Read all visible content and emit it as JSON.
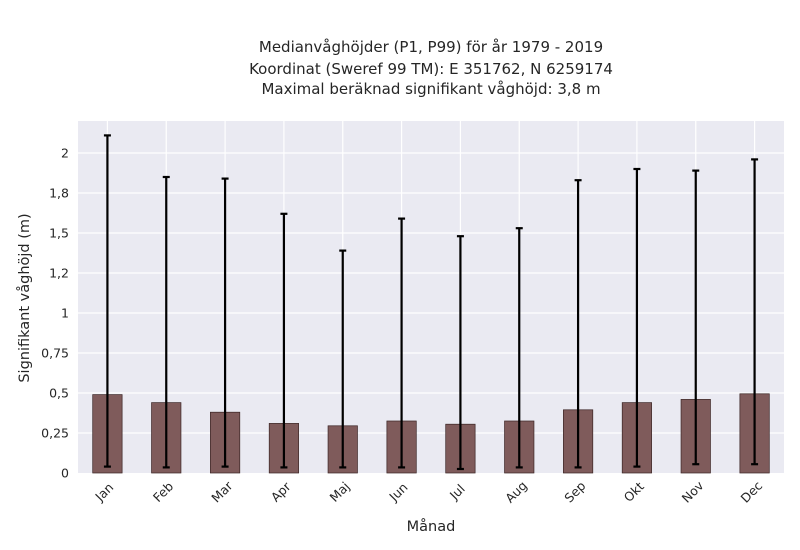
{
  "chart_data": {
    "type": "bar",
    "title_lines": [
      "Medianvåghöjder (P1, P99) för år 1979 - 2019",
      "Koordinat (Sweref 99 TM): E 351762, N 6259174",
      "Maximal beräknad signifikant våghöjd: 3,8 m"
    ],
    "xlabel": "Månad",
    "ylabel": "Signifikant våghöjd (m)",
    "categories": [
      "Jan",
      "Feb",
      "Mar",
      "Apr",
      "Maj",
      "Jun",
      "Jul",
      "Aug",
      "Sep",
      "Okt",
      "Nov",
      "Dec"
    ],
    "values": [
      0.49,
      0.44,
      0.38,
      0.31,
      0.295,
      0.325,
      0.305,
      0.325,
      0.395,
      0.44,
      0.46,
      0.495
    ],
    "err_low": [
      0.04,
      0.035,
      0.04,
      0.035,
      0.035,
      0.035,
      0.025,
      0.035,
      0.035,
      0.04,
      0.055,
      0.055
    ],
    "err_high": [
      2.11,
      1.85,
      1.84,
      1.62,
      1.39,
      1.59,
      1.48,
      1.53,
      1.83,
      1.9,
      1.89,
      1.96
    ],
    "ylim": [
      0,
      2.2
    ],
    "yticks": [
      0,
      0.25,
      0.5,
      0.75,
      1,
      1.25,
      1.5,
      1.75,
      2
    ],
    "ytick_labels": [
      "0",
      "0,25",
      "0,5",
      "0,75",
      "1",
      "1,2",
      "1,5",
      "1,8",
      "2"
    ],
    "grid": true,
    "colors": {
      "background": "#eaeaf2",
      "bar": "#7f5b5b",
      "error": "#000000",
      "grid": "#ffffff"
    }
  }
}
